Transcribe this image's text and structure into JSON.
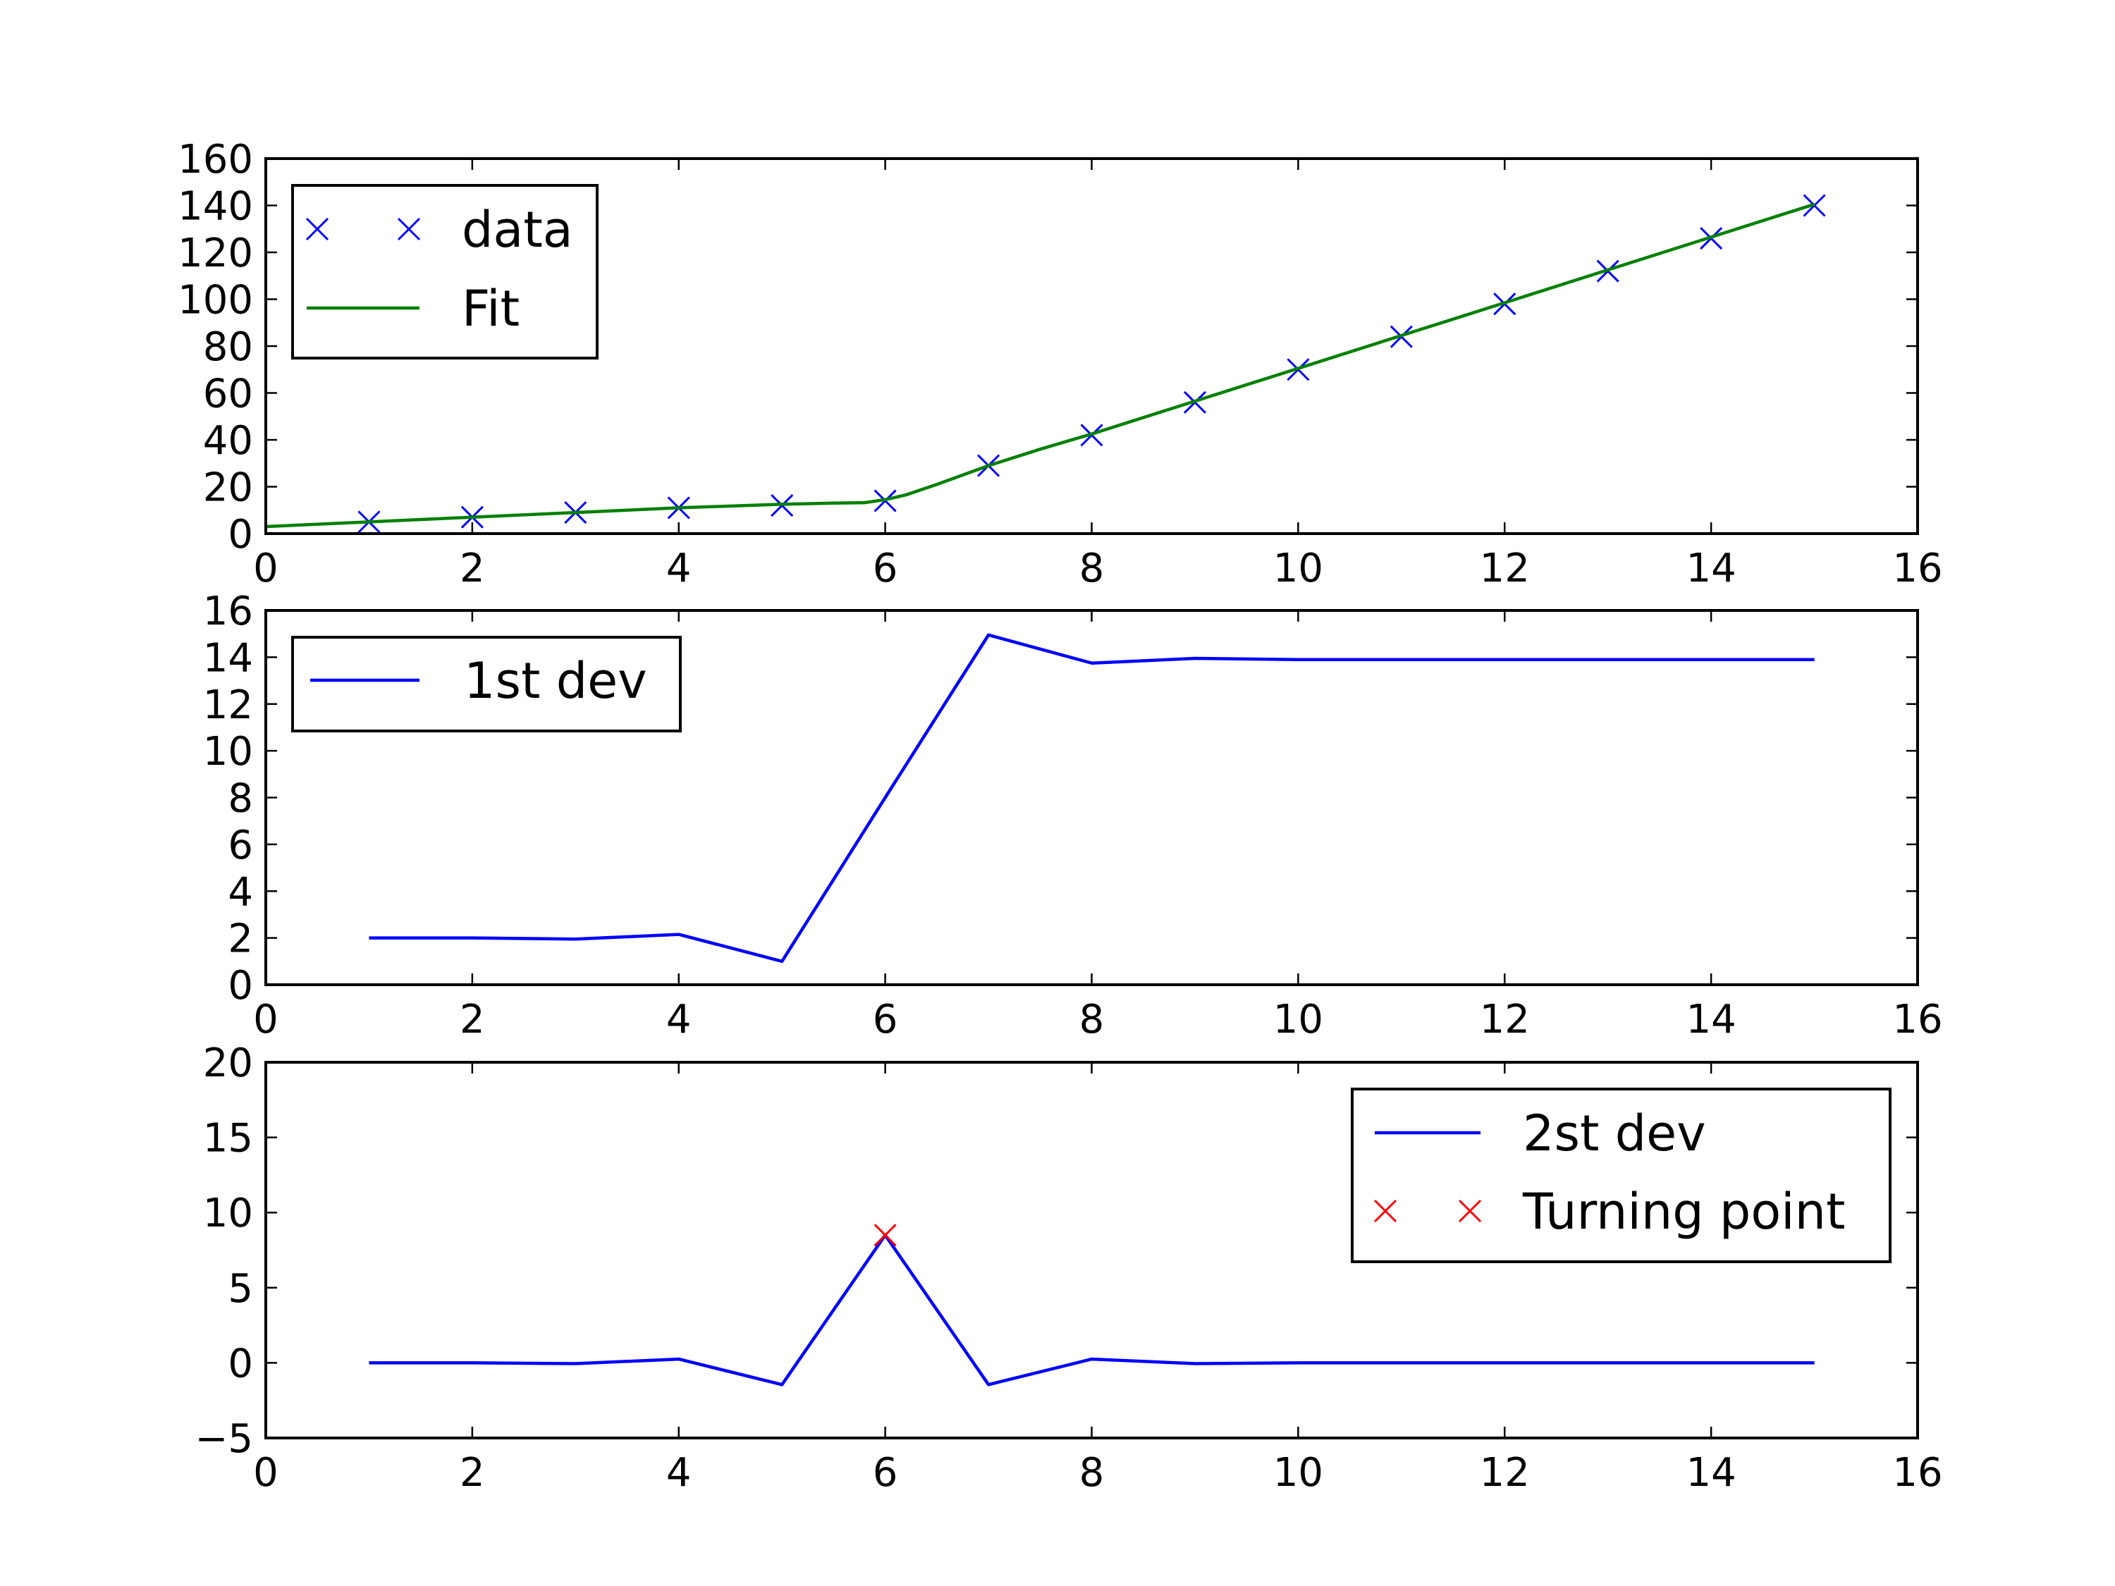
{
  "chart_data": [
    {
      "type": "line",
      "xlim": [
        0,
        16
      ],
      "ylim": [
        0,
        160
      ],
      "xticks": [
        "0",
        "2",
        "4",
        "6",
        "8",
        "10",
        "12",
        "14",
        "16"
      ],
      "yticks": [
        "0",
        "20",
        "40",
        "60",
        "80",
        "100",
        "120",
        "140",
        "160"
      ],
      "legend_position": "top-left",
      "series": [
        {
          "name": "data",
          "style": "markers",
          "marker": "x",
          "color": "#0000ff",
          "x": [
            1,
            2,
            3,
            4,
            5,
            6,
            7,
            8,
            9,
            10,
            11,
            12,
            13,
            14,
            15
          ],
          "y": [
            5,
            7,
            9,
            11,
            12,
            14,
            29,
            42,
            56,
            70,
            84,
            98,
            112,
            126,
            140
          ]
        },
        {
          "name": "Fit",
          "style": "line",
          "color": "#008000",
          "x": [
            0,
            1,
            2,
            3,
            4,
            5,
            5.5,
            5.8,
            6,
            6.2,
            6.5,
            7,
            7.5,
            8,
            9,
            10,
            11,
            12,
            13,
            14,
            15
          ],
          "y": [
            3,
            5,
            7,
            9,
            11,
            12.5,
            13,
            13.2,
            14.5,
            16.5,
            21,
            29,
            36,
            42.5,
            56.5,
            70.5,
            84.5,
            98.5,
            112.5,
            126.5,
            140.5
          ]
        }
      ]
    },
    {
      "type": "line",
      "xlim": [
        0,
        16
      ],
      "ylim": [
        0,
        16
      ],
      "xticks": [
        "0",
        "2",
        "4",
        "6",
        "8",
        "10",
        "12",
        "14",
        "16"
      ],
      "yticks": [
        "0",
        "2",
        "4",
        "6",
        "8",
        "10",
        "12",
        "14",
        "16"
      ],
      "legend_position": "top-left",
      "series": [
        {
          "name": "1st dev",
          "style": "line",
          "color": "#0000ff",
          "x": [
            1,
            2,
            3,
            4,
            5,
            6,
            7,
            8,
            9,
            10,
            11,
            12,
            13,
            14,
            15
          ],
          "y": [
            2.0,
            2.0,
            1.95,
            2.15,
            1.0,
            8.0,
            14.95,
            13.75,
            13.95,
            13.9,
            13.9,
            13.9,
            13.9,
            13.9,
            13.9
          ]
        }
      ]
    },
    {
      "type": "line",
      "xlim": [
        0,
        16
      ],
      "ylim": [
        -5,
        20
      ],
      "xticks": [
        "0",
        "2",
        "4",
        "6",
        "8",
        "10",
        "12",
        "14",
        "16"
      ],
      "yticks": [
        "−5",
        "0",
        "5",
        "10",
        "15",
        "20"
      ],
      "legend_position": "top-right",
      "series": [
        {
          "name": "2st dev",
          "style": "line",
          "color": "#0000ff",
          "x": [
            1,
            2,
            3,
            4,
            5,
            6,
            7,
            8,
            9,
            10,
            11,
            12,
            13,
            14,
            15
          ],
          "y": [
            0,
            0,
            -0.05,
            0.25,
            -1.45,
            8.5,
            -1.45,
            0.25,
            -0.05,
            0,
            0,
            0,
            0,
            0,
            0
          ]
        },
        {
          "name": "Turning point",
          "style": "markers",
          "marker": "x",
          "color": "#ff0000",
          "x": [
            6
          ],
          "y": [
            8.5
          ]
        }
      ]
    }
  ]
}
